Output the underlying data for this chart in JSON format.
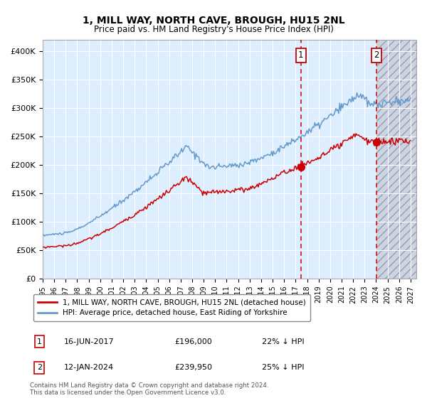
{
  "title": "1, MILL WAY, NORTH CAVE, BROUGH, HU15 2NL",
  "subtitle": "Price paid vs. HM Land Registry's House Price Index (HPI)",
  "xlim_start": 1995.0,
  "xlim_end": 2027.5,
  "ylim": [
    0,
    420000
  ],
  "yticks": [
    0,
    50000,
    100000,
    150000,
    200000,
    250000,
    300000,
    350000,
    400000
  ],
  "ytick_labels": [
    "£0",
    "£50K",
    "£100K",
    "£150K",
    "£200K",
    "£250K",
    "£300K",
    "£350K",
    "£400K"
  ],
  "xticks": [
    1995,
    1996,
    1997,
    1998,
    1999,
    2000,
    2001,
    2002,
    2003,
    2004,
    2005,
    2006,
    2007,
    2008,
    2009,
    2010,
    2011,
    2012,
    2013,
    2014,
    2015,
    2016,
    2017,
    2018,
    2019,
    2020,
    2021,
    2022,
    2023,
    2024,
    2025,
    2026,
    2027
  ],
  "event1_x": 2017.46,
  "event1_y": 196000,
  "event2_x": 2024.04,
  "event2_y": 239950,
  "legend_line1": "1, MILL WAY, NORTH CAVE, BROUGH, HU15 2NL (detached house)",
  "legend_line2": "HPI: Average price, detached house, East Riding of Yorkshire",
  "ann1_label": "1",
  "ann1_date": "16-JUN-2017",
  "ann1_price": "£196,000",
  "ann1_hpi": "22% ↓ HPI",
  "ann2_label": "2",
  "ann2_date": "12-JAN-2024",
  "ann2_price": "£239,950",
  "ann2_hpi": "25% ↓ HPI",
  "footer": "Contains HM Land Registry data © Crown copyright and database right 2024.\nThis data is licensed under the Open Government Licence v3.0.",
  "line_color_red": "#cc0000",
  "line_color_blue": "#6699cc",
  "bg_color_main": "#ddeeff",
  "grid_color": "#ffffff",
  "future_shade_color": "#ccd4e0"
}
